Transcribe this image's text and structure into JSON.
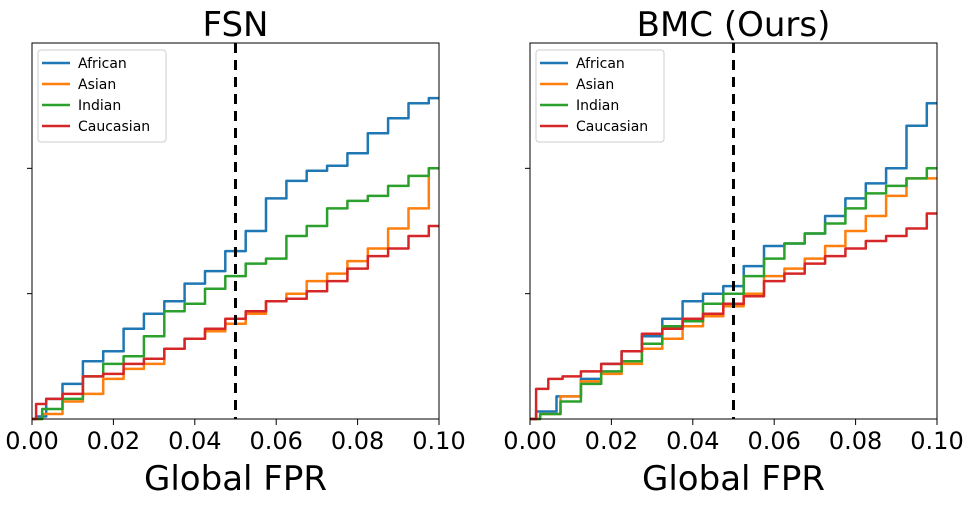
{
  "chart_data": [
    {
      "type": "line",
      "title": "FSN",
      "xlabel": "Global FPR",
      "ylabel": "",
      "xlim": [
        0,
        0.1
      ],
      "ylim": [
        0,
        0.15
      ],
      "xticks": [
        "0.00",
        "0.02",
        "0.04",
        "0.06",
        "0.08",
        "0.10"
      ],
      "xtick_values": [
        0,
        0.02,
        0.04,
        0.06,
        0.08,
        0.1
      ],
      "ytick_values": [
        0.05,
        0.1
      ],
      "grid": false,
      "legend": {
        "position": "top-left"
      },
      "threshold_line": {
        "x": 0.05,
        "style": "dashed"
      },
      "series": [
        {
          "name": "African",
          "color": "#1f77b4",
          "points": [
            [
              0,
              0
            ],
            [
              0.002,
              0.001
            ],
            [
              0.005,
              0.008
            ],
            [
              0.01,
              0.014
            ],
            [
              0.015,
              0.023
            ],
            [
              0.02,
              0.027
            ],
            [
              0.025,
              0.036
            ],
            [
              0.03,
              0.042
            ],
            [
              0.035,
              0.047
            ],
            [
              0.04,
              0.054
            ],
            [
              0.045,
              0.059
            ],
            [
              0.05,
              0.067
            ],
            [
              0.055,
              0.075
            ],
            [
              0.06,
              0.088
            ],
            [
              0.065,
              0.095
            ],
            [
              0.07,
              0.099
            ],
            [
              0.075,
              0.101
            ],
            [
              0.08,
              0.106
            ],
            [
              0.085,
              0.114
            ],
            [
              0.09,
              0.12
            ],
            [
              0.095,
              0.126
            ],
            [
              0.1,
              0.128
            ]
          ]
        },
        {
          "name": "Asian",
          "color": "#ff7f0e",
          "points": [
            [
              0,
              0
            ],
            [
              0.005,
              0.002
            ],
            [
              0.01,
              0.007
            ],
            [
              0.015,
              0.01
            ],
            [
              0.02,
              0.016
            ],
            [
              0.025,
              0.02
            ],
            [
              0.03,
              0.022
            ],
            [
              0.035,
              0.028
            ],
            [
              0.04,
              0.032
            ],
            [
              0.045,
              0.035
            ],
            [
              0.05,
              0.038
            ],
            [
              0.055,
              0.042
            ],
            [
              0.06,
              0.047
            ],
            [
              0.065,
              0.05
            ],
            [
              0.07,
              0.055
            ],
            [
              0.075,
              0.058
            ],
            [
              0.08,
              0.063
            ],
            [
              0.085,
              0.068
            ],
            [
              0.09,
              0.076
            ],
            [
              0.095,
              0.084
            ],
            [
              0.1,
              0.1
            ]
          ]
        },
        {
          "name": "Indian",
          "color": "#2ca02c",
          "points": [
            [
              0,
              0
            ],
            [
              0.005,
              0.004
            ],
            [
              0.01,
              0.008
            ],
            [
              0.015,
              0.017
            ],
            [
              0.02,
              0.022
            ],
            [
              0.025,
              0.025
            ],
            [
              0.03,
              0.033
            ],
            [
              0.035,
              0.043
            ],
            [
              0.04,
              0.046
            ],
            [
              0.045,
              0.052
            ],
            [
              0.05,
              0.057
            ],
            [
              0.055,
              0.062
            ],
            [
              0.06,
              0.064
            ],
            [
              0.065,
              0.073
            ],
            [
              0.07,
              0.077
            ],
            [
              0.075,
              0.084
            ],
            [
              0.08,
              0.087
            ],
            [
              0.085,
              0.089
            ],
            [
              0.09,
              0.093
            ],
            [
              0.095,
              0.097
            ],
            [
              0.1,
              0.1
            ]
          ]
        },
        {
          "name": "Caucasian",
          "color": "#d62728",
          "points": [
            [
              0,
              0
            ],
            [
              0.002,
              0.006
            ],
            [
              0.005,
              0.008
            ],
            [
              0.01,
              0.01
            ],
            [
              0.015,
              0.017
            ],
            [
              0.02,
              0.018
            ],
            [
              0.025,
              0.022
            ],
            [
              0.03,
              0.024
            ],
            [
              0.035,
              0.028
            ],
            [
              0.04,
              0.032
            ],
            [
              0.045,
              0.036
            ],
            [
              0.05,
              0.04
            ],
            [
              0.055,
              0.043
            ],
            [
              0.06,
              0.047
            ],
            [
              0.065,
              0.048
            ],
            [
              0.07,
              0.051
            ],
            [
              0.075,
              0.055
            ],
            [
              0.08,
              0.06
            ],
            [
              0.085,
              0.065
            ],
            [
              0.09,
              0.068
            ],
            [
              0.095,
              0.073
            ],
            [
              0.1,
              0.077
            ]
          ]
        }
      ]
    },
    {
      "type": "line",
      "title": "BMC (Ours)",
      "xlabel": "Global FPR",
      "ylabel": "",
      "xlim": [
        0,
        0.1
      ],
      "ylim": [
        0,
        0.15
      ],
      "xticks": [
        "0.00",
        "0.02",
        "0.04",
        "0.06",
        "0.08",
        "0.10"
      ],
      "xtick_values": [
        0,
        0.02,
        0.04,
        0.06,
        0.08,
        0.1
      ],
      "ytick_values": [
        0.05,
        0.1
      ],
      "grid": false,
      "legend": {
        "position": "top-left"
      },
      "threshold_line": {
        "x": 0.05,
        "style": "dashed"
      },
      "series": [
        {
          "name": "African",
          "color": "#1f77b4",
          "points": [
            [
              0,
              0
            ],
            [
              0.003,
              0.003
            ],
            [
              0.01,
              0.009
            ],
            [
              0.015,
              0.016
            ],
            [
              0.02,
              0.022
            ],
            [
              0.025,
              0.027
            ],
            [
              0.03,
              0.033
            ],
            [
              0.035,
              0.04
            ],
            [
              0.04,
              0.047
            ],
            [
              0.045,
              0.05
            ],
            [
              0.05,
              0.053
            ],
            [
              0.055,
              0.061
            ],
            [
              0.06,
              0.069
            ],
            [
              0.065,
              0.07
            ],
            [
              0.07,
              0.074
            ],
            [
              0.075,
              0.081
            ],
            [
              0.08,
              0.088
            ],
            [
              0.085,
              0.094
            ],
            [
              0.09,
              0.1
            ],
            [
              0.095,
              0.117
            ],
            [
              0.1,
              0.126
            ]
          ]
        },
        {
          "name": "Asian",
          "color": "#ff7f0e",
          "points": [
            [
              0,
              0
            ],
            [
              0.005,
              0.002
            ],
            [
              0.01,
              0.009
            ],
            [
              0.015,
              0.015
            ],
            [
              0.02,
              0.018
            ],
            [
              0.025,
              0.022
            ],
            [
              0.03,
              0.028
            ],
            [
              0.035,
              0.032
            ],
            [
              0.04,
              0.037
            ],
            [
              0.045,
              0.041
            ],
            [
              0.05,
              0.045
            ],
            [
              0.055,
              0.05
            ],
            [
              0.06,
              0.057
            ],
            [
              0.065,
              0.06
            ],
            [
              0.07,
              0.064
            ],
            [
              0.075,
              0.069
            ],
            [
              0.08,
              0.075
            ],
            [
              0.085,
              0.081
            ],
            [
              0.09,
              0.089
            ],
            [
              0.095,
              0.096
            ],
            [
              0.1,
              0.096
            ]
          ]
        },
        {
          "name": "Indian",
          "color": "#2ca02c",
          "points": [
            [
              0,
              0
            ],
            [
              0.005,
              0.002
            ],
            [
              0.01,
              0.007
            ],
            [
              0.015,
              0.014
            ],
            [
              0.02,
              0.019
            ],
            [
              0.025,
              0.023
            ],
            [
              0.03,
              0.03
            ],
            [
              0.035,
              0.037
            ],
            [
              0.04,
              0.039
            ],
            [
              0.045,
              0.046
            ],
            [
              0.05,
              0.05
            ],
            [
              0.055,
              0.057
            ],
            [
              0.06,
              0.064
            ],
            [
              0.065,
              0.07
            ],
            [
              0.07,
              0.074
            ],
            [
              0.075,
              0.078
            ],
            [
              0.08,
              0.084
            ],
            [
              0.085,
              0.09
            ],
            [
              0.09,
              0.093
            ],
            [
              0.095,
              0.096
            ],
            [
              0.1,
              0.1
            ]
          ]
        },
        {
          "name": "Caucasian",
          "color": "#d62728",
          "points": [
            [
              0,
              0
            ],
            [
              0.003,
              0.012
            ],
            [
              0.006,
              0.016
            ],
            [
              0.01,
              0.017
            ],
            [
              0.015,
              0.019
            ],
            [
              0.02,
              0.022
            ],
            [
              0.025,
              0.027
            ],
            [
              0.03,
              0.034
            ],
            [
              0.035,
              0.036
            ],
            [
              0.04,
              0.04
            ],
            [
              0.045,
              0.042
            ],
            [
              0.05,
              0.046
            ],
            [
              0.055,
              0.049
            ],
            [
              0.06,
              0.055
            ],
            [
              0.065,
              0.058
            ],
            [
              0.07,
              0.062
            ],
            [
              0.075,
              0.065
            ],
            [
              0.08,
              0.068
            ],
            [
              0.085,
              0.071
            ],
            [
              0.09,
              0.073
            ],
            [
              0.095,
              0.076
            ],
            [
              0.1,
              0.082
            ]
          ]
        }
      ]
    }
  ]
}
